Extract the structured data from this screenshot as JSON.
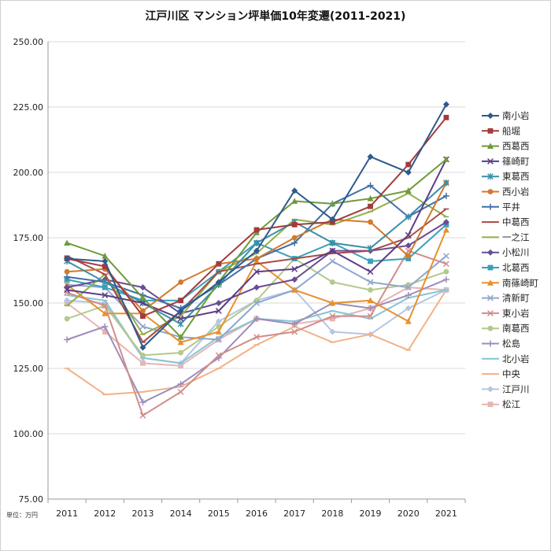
{
  "chart_data": {
    "type": "line",
    "title": "江戸川区 マンション坪単価10年変遷(2011-2021)",
    "unit_label": "単位：万円",
    "x": [
      "2011",
      "2012",
      "2013",
      "2014",
      "2015",
      "2016",
      "2017",
      "2018",
      "2019",
      "2020",
      "2021"
    ],
    "y_ticks": [
      "75.00",
      "100.00",
      "125.00",
      "150.00",
      "175.00",
      "200.00",
      "225.00",
      "250.00"
    ],
    "ylim": [
      75,
      250
    ],
    "grid": "horizontal",
    "legend_position": "right",
    "series": [
      {
        "name": "南小岩",
        "color": "#2e5a8c",
        "marker": "diamond",
        "values": [
          167,
          166,
          133,
          147,
          158,
          170,
          193,
          182,
          206,
          200,
          226
        ]
      },
      {
        "name": "船堀",
        "color": "#a33b3b",
        "marker": "square",
        "values": [
          167,
          164,
          145,
          151,
          165,
          178,
          180,
          181,
          187,
          203,
          221
        ]
      },
      {
        "name": "西葛西",
        "color": "#6f9a3a",
        "marker": "triangle",
        "values": [
          173,
          168,
          152,
          137,
          158,
          177,
          189,
          188,
          190,
          193,
          205
        ]
      },
      {
        "name": "篠崎町",
        "color": "#5c3d85",
        "marker": "x",
        "values": [
          155,
          153,
          150,
          144,
          147,
          162,
          163,
          170,
          162,
          176,
          205
        ]
      },
      {
        "name": "東葛西",
        "color": "#3a8fa6",
        "marker": "star",
        "values": [
          166,
          158,
          150,
          142,
          157,
          173,
          181,
          173,
          171,
          183,
          196
        ]
      },
      {
        "name": "西小岩",
        "color": "#d07a2c",
        "marker": "circle",
        "values": [
          162,
          163,
          147,
          158,
          165,
          167,
          175,
          182,
          181,
          168,
          196
        ]
      },
      {
        "name": "平井",
        "color": "#3f6fa8",
        "marker": "plus",
        "values": [
          160,
          158,
          153,
          148,
          157,
          167,
          173,
          188,
          195,
          183,
          191
        ]
      },
      {
        "name": "中葛西",
        "color": "#a94a47",
        "marker": "dash",
        "values": [
          168,
          161,
          135,
          147,
          162,
          165,
          167,
          169,
          170,
          175,
          186
        ]
      },
      {
        "name": "一之江",
        "color": "#93ae4c",
        "marker": "dash",
        "values": [
          149,
          161,
          138,
          145,
          162,
          169,
          182,
          180,
          185,
          192,
          183
        ]
      },
      {
        "name": "小松川",
        "color": "#6a4c93",
        "marker": "diamond",
        "values": [
          156,
          159,
          156,
          146,
          150,
          156,
          159,
          170,
          170,
          172,
          181
        ]
      },
      {
        "name": "北葛西",
        "color": "#3aa0b8",
        "marker": "square",
        "values": [
          159,
          156,
          151,
          151,
          162,
          173,
          167,
          173,
          166,
          167,
          180
        ]
      },
      {
        "name": "南篠崎町",
        "color": "#e8902e",
        "marker": "triangle",
        "values": [
          157,
          146,
          146,
          135,
          139,
          166,
          155,
          150,
          151,
          143,
          178
        ]
      },
      {
        "name": "清新町",
        "color": "#8fa6cf",
        "marker": "x",
        "values": [
          157,
          156,
          141,
          137,
          136,
          150,
          155,
          166,
          158,
          156,
          168
        ]
      },
      {
        "name": "東小岩",
        "color": "#cf8d8b",
        "marker": "x",
        "values": [
          154,
          149,
          107,
          116,
          130,
          137,
          139,
          145,
          145,
          170,
          165
        ]
      },
      {
        "name": "南葛西",
        "color": "#b4c98b",
        "marker": "circle",
        "values": [
          144,
          149,
          130,
          131,
          141,
          151,
          167,
          158,
          155,
          157,
          162
        ]
      },
      {
        "name": "松島",
        "color": "#9d8cba",
        "marker": "plus",
        "values": [
          136,
          141,
          112,
          119,
          129,
          144,
          142,
          150,
          148,
          153,
          159
        ]
      },
      {
        "name": "北小岩",
        "color": "#86c4d4",
        "marker": "dash",
        "values": [
          153,
          151,
          129,
          127,
          137,
          144,
          143,
          147,
          144,
          152,
          155
        ]
      },
      {
        "name": "中央",
        "color": "#f1b287",
        "marker": "dash",
        "values": [
          125,
          115,
          116,
          118,
          125,
          134,
          141,
          135,
          138,
          132,
          155
        ]
      },
      {
        "name": "江戸川",
        "color": "#b5c5e3",
        "marker": "diamond",
        "values": [
          151,
          150,
          129,
          127,
          143,
          151,
          155,
          139,
          138,
          148,
          155
        ]
      },
      {
        "name": "松江",
        "color": "#e6b5b3",
        "marker": "square",
        "values": [
          150,
          139,
          127,
          126,
          136,
          144,
          142,
          144,
          148,
          156,
          155
        ]
      }
    ]
  }
}
